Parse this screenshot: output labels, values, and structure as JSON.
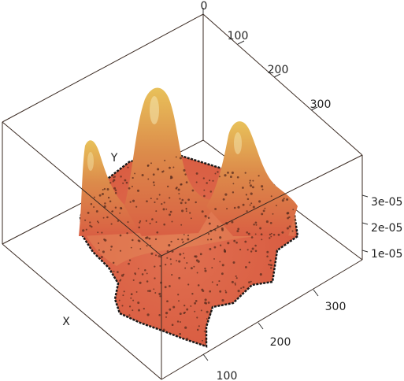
{
  "chart_data": {
    "type": "surface",
    "title": "",
    "surface_color_low": "#d95f43",
    "surface_color_high": "#e8c15a",
    "point_color": "#5a2c1e",
    "outline_color": "#1a1a1a",
    "x_axis": {
      "label": "X",
      "ticks": [
        "100",
        "200",
        "300"
      ]
    },
    "y_axis": {
      "label": "Y",
      "ticks": [
        "0",
        "100",
        "200",
        "300"
      ]
    },
    "z_axis": {
      "label": "",
      "ticks": [
        "1e-05",
        "2e-05",
        "3e-05"
      ],
      "range": [
        0,
        3.5e-05
      ]
    },
    "peaks": [
      {
        "name": "left",
        "height": 2.8e-05
      },
      {
        "name": "center",
        "height": 3.5e-05
      },
      {
        "name": "right",
        "height": 3.1e-05
      }
    ]
  }
}
